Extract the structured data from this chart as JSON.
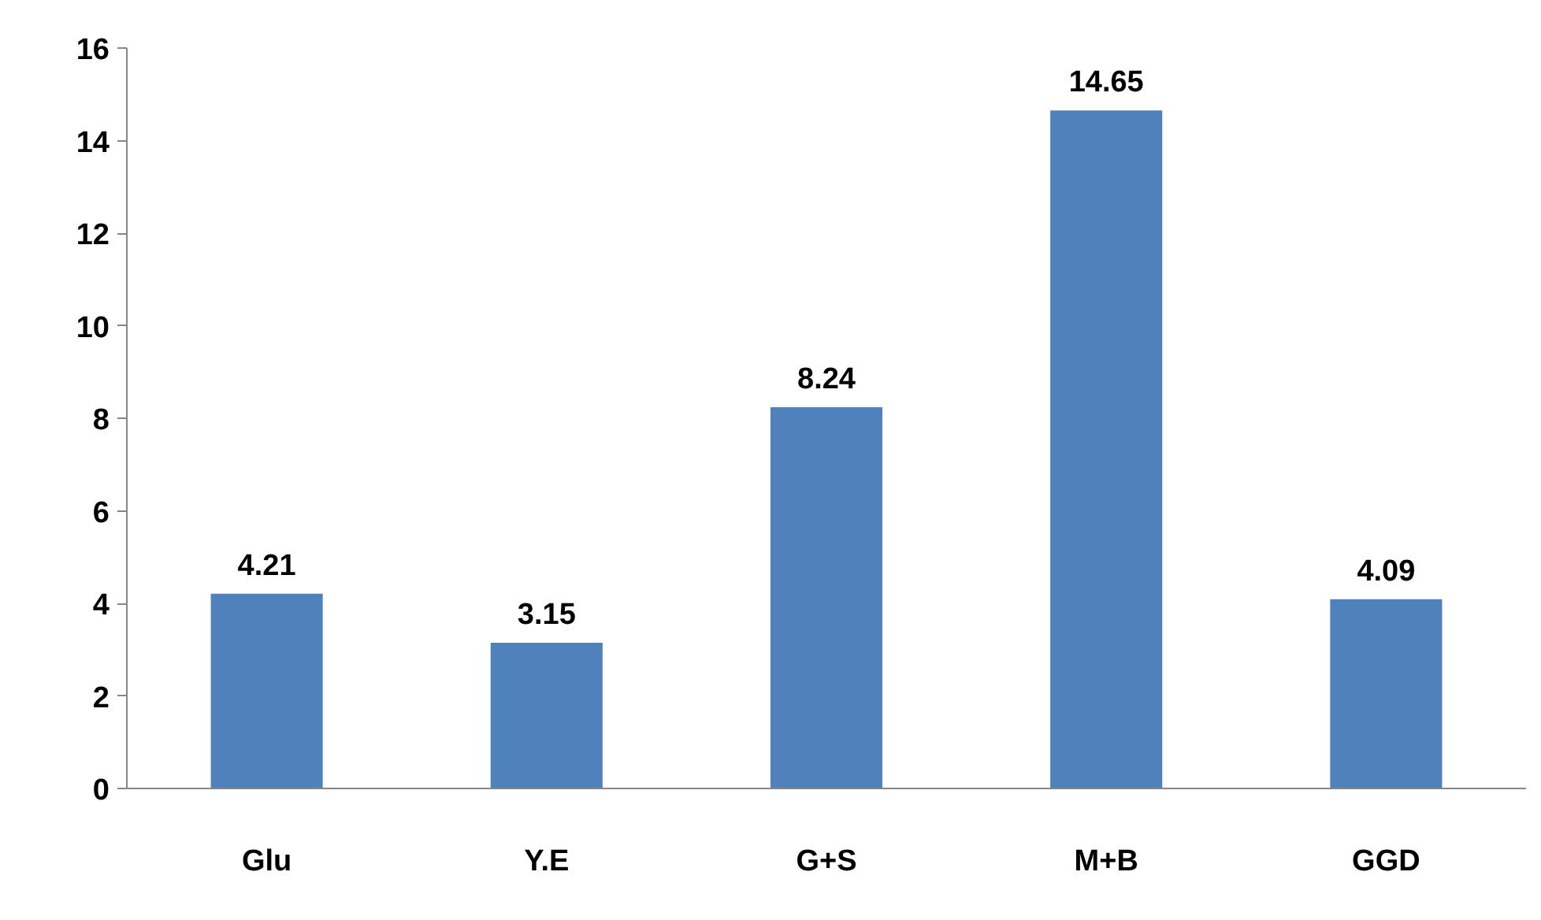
{
  "chart_data": {
    "type": "bar",
    "categories": [
      "Glu",
      "Y.E",
      "G+S",
      "M+B",
      "GGD"
    ],
    "values": [
      4.21,
      3.15,
      8.24,
      14.65,
      4.09
    ],
    "color": "#4f81bd",
    "ylim": [
      0,
      16
    ],
    "yticks": [
      0,
      2,
      4,
      6,
      8,
      10,
      12,
      14,
      16
    ],
    "grid": false,
    "data_labels": true
  }
}
